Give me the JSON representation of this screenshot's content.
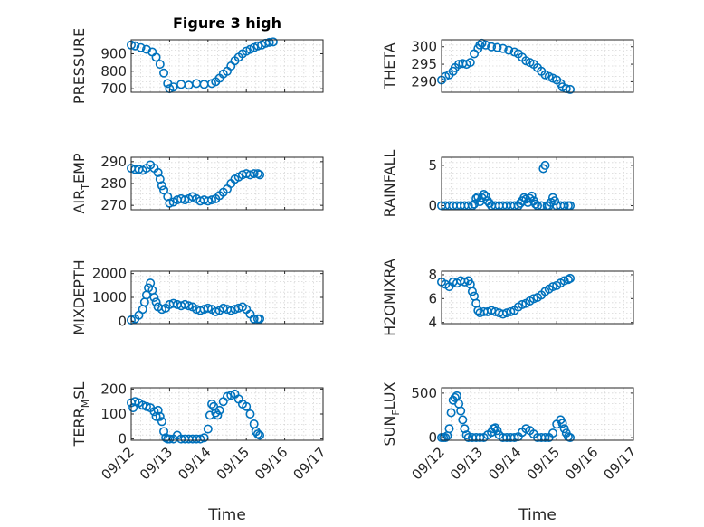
{
  "figure_title": "Figure 3 high",
  "chart_data": [
    {
      "id": "pressure",
      "type": "scatter",
      "title": "Figure 3 high",
      "ylabel": "PRESSURE",
      "ylim": [
        680,
        980
      ],
      "yticks": [
        700,
        800,
        900
      ],
      "xlim": [
        0,
        5
      ],
      "xticks": [
        0,
        1,
        2,
        3,
        4,
        5
      ],
      "xticklabels": [
        "",
        "",
        "",
        "",
        "",
        ""
      ],
      "grid": true,
      "points": [
        [
          0,
          950
        ],
        [
          0.1,
          945
        ],
        [
          0.25,
          935
        ],
        [
          0.4,
          925
        ],
        [
          0.55,
          910
        ],
        [
          0.65,
          880
        ],
        [
          0.75,
          840
        ],
        [
          0.85,
          790
        ],
        [
          0.95,
          730
        ],
        [
          1,
          700
        ],
        [
          1.1,
          710
        ],
        [
          1.3,
          725
        ],
        [
          1.5,
          720
        ],
        [
          1.7,
          730
        ],
        [
          1.9,
          725
        ],
        [
          2.1,
          730
        ],
        [
          2.2,
          740
        ],
        [
          2.3,
          760
        ],
        [
          2.4,
          785
        ],
        [
          2.5,
          800
        ],
        [
          2.6,
          830
        ],
        [
          2.7,
          860
        ],
        [
          2.8,
          880
        ],
        [
          2.9,
          900
        ],
        [
          3,
          915
        ],
        [
          3.1,
          925
        ],
        [
          3.2,
          935
        ],
        [
          3.3,
          945
        ],
        [
          3.4,
          950
        ],
        [
          3.5,
          960
        ],
        [
          3.6,
          965
        ],
        [
          3.7,
          968
        ]
      ]
    },
    {
      "id": "theta",
      "type": "scatter",
      "ylabel": "THETA",
      "ylim": [
        287,
        302
      ],
      "yticks": [
        290,
        295,
        300
      ],
      "xlim": [
        0,
        5
      ],
      "xticks": [
        0,
        1,
        2,
        3,
        4,
        5
      ],
      "xticklabels": [
        "",
        "",
        "",
        "",
        "",
        ""
      ],
      "grid": true,
      "points": [
        [
          0,
          290.5
        ],
        [
          0.1,
          291.5
        ],
        [
          0.2,
          292
        ],
        [
          0.3,
          293
        ],
        [
          0.35,
          294
        ],
        [
          0.45,
          295
        ],
        [
          0.55,
          295.2
        ],
        [
          0.65,
          295
        ],
        [
          0.75,
          295.5
        ],
        [
          0.85,
          298
        ],
        [
          0.95,
          299.5
        ],
        [
          1,
          300.5
        ],
        [
          1.05,
          301
        ],
        [
          1.15,
          300.5
        ],
        [
          1.3,
          300
        ],
        [
          1.45,
          299.8
        ],
        [
          1.6,
          299.5
        ],
        [
          1.75,
          299
        ],
        [
          1.9,
          298.5
        ],
        [
          2,
          298
        ],
        [
          2.1,
          297
        ],
        [
          2.2,
          296
        ],
        [
          2.3,
          295.5
        ],
        [
          2.4,
          295
        ],
        [
          2.5,
          294
        ],
        [
          2.6,
          293
        ],
        [
          2.7,
          292
        ],
        [
          2.8,
          291.5
        ],
        [
          2.9,
          291
        ],
        [
          3,
          290.5
        ],
        [
          3.1,
          289.5
        ],
        [
          3.15,
          288.5
        ],
        [
          3.25,
          288
        ],
        [
          3.35,
          287.8
        ]
      ]
    },
    {
      "id": "air_temp",
      "type": "scatter",
      "ylabel": "AIR_TEMP",
      "ylim": [
        268,
        292
      ],
      "yticks": [
        270,
        280,
        290
      ],
      "xlim": [
        0,
        5
      ],
      "xticks": [
        0,
        1,
        2,
        3,
        4,
        5
      ],
      "xticklabels": [
        "",
        "",
        "",
        "",
        "",
        ""
      ],
      "grid": true,
      "points": [
        [
          0,
          287
        ],
        [
          0.1,
          286.5
        ],
        [
          0.2,
          286.5
        ],
        [
          0.3,
          286
        ],
        [
          0.4,
          287
        ],
        [
          0.5,
          288.5
        ],
        [
          0.6,
          287
        ],
        [
          0.7,
          285
        ],
        [
          0.75,
          282
        ],
        [
          0.8,
          279
        ],
        [
          0.85,
          277
        ],
        [
          0.95,
          274
        ],
        [
          1,
          271
        ],
        [
          1.1,
          271.5
        ],
        [
          1.2,
          272.5
        ],
        [
          1.3,
          273
        ],
        [
          1.4,
          272.5
        ],
        [
          1.5,
          273
        ],
        [
          1.6,
          274
        ],
        [
          1.7,
          273
        ],
        [
          1.8,
          272
        ],
        [
          1.9,
          272.5
        ],
        [
          2,
          272
        ],
        [
          2.1,
          272.5
        ],
        [
          2.2,
          273
        ],
        [
          2.3,
          274.5
        ],
        [
          2.4,
          276
        ],
        [
          2.5,
          277.5
        ],
        [
          2.6,
          280
        ],
        [
          2.7,
          282
        ],
        [
          2.8,
          283
        ],
        [
          2.9,
          284
        ],
        [
          3,
          284.5
        ],
        [
          3.1,
          284
        ],
        [
          3.2,
          284.5
        ],
        [
          3.3,
          284.5
        ],
        [
          3.35,
          284
        ]
      ]
    },
    {
      "id": "rainfall",
      "type": "scatter",
      "ylabel": "RAINFALL",
      "ylim": [
        -0.5,
        6
      ],
      "yticks": [
        0,
        5
      ],
      "xlim": [
        0,
        5
      ],
      "xticks": [
        0,
        1,
        2,
        3,
        4,
        5
      ],
      "xticklabels": [
        "",
        "",
        "",
        "",
        "",
        ""
      ],
      "grid": true,
      "points": [
        [
          0,
          0
        ],
        [
          0.1,
          0
        ],
        [
          0.2,
          0
        ],
        [
          0.3,
          0
        ],
        [
          0.4,
          0
        ],
        [
          0.5,
          0
        ],
        [
          0.6,
          0
        ],
        [
          0.7,
          0
        ],
        [
          0.8,
          0
        ],
        [
          0.85,
          0.2
        ],
        [
          0.9,
          0.9
        ],
        [
          0.95,
          1.1
        ],
        [
          1,
          0.5
        ],
        [
          1.05,
          1
        ],
        [
          1.1,
          1.4
        ],
        [
          1.15,
          1.2
        ],
        [
          1.2,
          0.6
        ],
        [
          1.25,
          0.3
        ],
        [
          1.3,
          0
        ],
        [
          1.4,
          0
        ],
        [
          1.5,
          0
        ],
        [
          1.6,
          0
        ],
        [
          1.7,
          0
        ],
        [
          1.8,
          0
        ],
        [
          1.9,
          0
        ],
        [
          2,
          0
        ],
        [
          2.05,
          0.3
        ],
        [
          2.1,
          0.6
        ],
        [
          2.15,
          1
        ],
        [
          2.2,
          0.8
        ],
        [
          2.25,
          0.4
        ],
        [
          2.3,
          0.9
        ],
        [
          2.35,
          1.2
        ],
        [
          2.4,
          0.6
        ],
        [
          2.45,
          0.2
        ],
        [
          2.5,
          0
        ],
        [
          2.6,
          0
        ],
        [
          2.65,
          4.6
        ],
        [
          2.7,
          5
        ],
        [
          2.75,
          0
        ],
        [
          2.8,
          0
        ],
        [
          2.85,
          0.4
        ],
        [
          2.9,
          1
        ],
        [
          2.95,
          0.6
        ],
        [
          3,
          0
        ],
        [
          3.1,
          0
        ],
        [
          3.2,
          0
        ],
        [
          3.3,
          0
        ],
        [
          3.35,
          0
        ]
      ]
    },
    {
      "id": "mixdepth",
      "type": "scatter",
      "ylabel": "MIXDEPTH",
      "ylim": [
        -100,
        2100
      ],
      "yticks": [
        0,
        1000,
        2000
      ],
      "xlim": [
        0,
        5
      ],
      "xticks": [
        0,
        1,
        2,
        3,
        4,
        5
      ],
      "xticklabels": [
        "",
        "",
        "",
        "",
        "",
        ""
      ],
      "grid": true,
      "points": [
        [
          0,
          50
        ],
        [
          0.1,
          100
        ],
        [
          0.2,
          250
        ],
        [
          0.3,
          500
        ],
        [
          0.35,
          800
        ],
        [
          0.4,
          1100
        ],
        [
          0.45,
          1400
        ],
        [
          0.5,
          1600
        ],
        [
          0.55,
          1300
        ],
        [
          0.6,
          1000
        ],
        [
          0.65,
          800
        ],
        [
          0.7,
          600
        ],
        [
          0.8,
          500
        ],
        [
          0.9,
          550
        ],
        [
          1,
          700
        ],
        [
          1.1,
          750
        ],
        [
          1.2,
          700
        ],
        [
          1.3,
          650
        ],
        [
          1.4,
          700
        ],
        [
          1.5,
          650
        ],
        [
          1.6,
          600
        ],
        [
          1.7,
          500
        ],
        [
          1.8,
          450
        ],
        [
          1.9,
          500
        ],
        [
          2,
          550
        ],
        [
          2.1,
          500
        ],
        [
          2.2,
          400
        ],
        [
          2.3,
          450
        ],
        [
          2.4,
          550
        ],
        [
          2.5,
          500
        ],
        [
          2.6,
          450
        ],
        [
          2.7,
          500
        ],
        [
          2.8,
          550
        ],
        [
          2.9,
          600
        ],
        [
          3,
          500
        ],
        [
          3.1,
          300
        ],
        [
          3.2,
          100
        ],
        [
          3.3,
          100
        ],
        [
          3.35,
          100
        ]
      ]
    },
    {
      "id": "h2omixra",
      "type": "scatter",
      "ylabel": "H2OMIXRA",
      "ylim": [
        3.9,
        8.3
      ],
      "yticks": [
        4,
        6,
        8
      ],
      "xlim": [
        0,
        5
      ],
      "xticks": [
        0,
        1,
        2,
        3,
        4,
        5
      ],
      "xticklabels": [
        "",
        "",
        "",
        "",
        "",
        ""
      ],
      "grid": true,
      "points": [
        [
          0,
          7.4
        ],
        [
          0.1,
          7.2
        ],
        [
          0.2,
          7
        ],
        [
          0.3,
          7.4
        ],
        [
          0.4,
          7.3
        ],
        [
          0.5,
          7.5
        ],
        [
          0.6,
          7.4
        ],
        [
          0.7,
          7.5
        ],
        [
          0.75,
          7.2
        ],
        [
          0.8,
          6.6
        ],
        [
          0.85,
          6.2
        ],
        [
          0.9,
          5.6
        ],
        [
          0.95,
          5
        ],
        [
          1,
          4.8
        ],
        [
          1.1,
          4.9
        ],
        [
          1.2,
          4.9
        ],
        [
          1.3,
          5
        ],
        [
          1.4,
          4.9
        ],
        [
          1.5,
          4.8
        ],
        [
          1.6,
          4.7
        ],
        [
          1.7,
          4.8
        ],
        [
          1.8,
          4.9
        ],
        [
          1.9,
          5
        ],
        [
          2,
          5.3
        ],
        [
          2.1,
          5.5
        ],
        [
          2.2,
          5.6
        ],
        [
          2.3,
          5.8
        ],
        [
          2.4,
          6
        ],
        [
          2.5,
          6.1
        ],
        [
          2.6,
          6.3
        ],
        [
          2.7,
          6.6
        ],
        [
          2.8,
          6.8
        ],
        [
          2.9,
          7
        ],
        [
          3,
          7.1
        ],
        [
          3.1,
          7.3
        ],
        [
          3.2,
          7.5
        ],
        [
          3.3,
          7.6
        ],
        [
          3.35,
          7.7
        ]
      ]
    },
    {
      "id": "terr_msl",
      "type": "scatter",
      "ylabel": "TERR_MSL",
      "ylim": [
        -5,
        205
      ],
      "yticks": [
        0,
        100,
        200
      ],
      "xlim": [
        0,
        5
      ],
      "xticks": [
        0,
        1,
        2,
        3,
        4,
        5
      ],
      "xticklabels": [
        "09/12",
        "09/13",
        "09/14",
        "09/15",
        "09/16",
        "09/17"
      ],
      "xlabel": "Time",
      "grid": true,
      "points": [
        [
          0,
          145
        ],
        [
          0.05,
          125
        ],
        [
          0.1,
          150
        ],
        [
          0.2,
          145
        ],
        [
          0.3,
          135
        ],
        [
          0.4,
          130
        ],
        [
          0.5,
          125
        ],
        [
          0.6,
          110
        ],
        [
          0.65,
          90
        ],
        [
          0.7,
          115
        ],
        [
          0.75,
          90
        ],
        [
          0.8,
          70
        ],
        [
          0.85,
          30
        ],
        [
          0.9,
          5
        ],
        [
          0.95,
          0
        ],
        [
          1,
          0
        ],
        [
          1.1,
          0
        ],
        [
          1.2,
          15
        ],
        [
          1.3,
          0
        ],
        [
          1.4,
          0
        ],
        [
          1.5,
          0
        ],
        [
          1.6,
          0
        ],
        [
          1.7,
          0
        ],
        [
          1.8,
          0
        ],
        [
          1.9,
          5
        ],
        [
          2,
          40
        ],
        [
          2.05,
          95
        ],
        [
          2.1,
          140
        ],
        [
          2.15,
          130
        ],
        [
          2.2,
          105
        ],
        [
          2.25,
          95
        ],
        [
          2.3,
          115
        ],
        [
          2.4,
          150
        ],
        [
          2.5,
          170
        ],
        [
          2.6,
          175
        ],
        [
          2.7,
          180
        ],
        [
          2.8,
          160
        ],
        [
          2.9,
          140
        ],
        [
          3,
          130
        ],
        [
          3.1,
          100
        ],
        [
          3.2,
          60
        ],
        [
          3.25,
          30
        ],
        [
          3.3,
          20
        ],
        [
          3.35,
          15
        ]
      ]
    },
    {
      "id": "sun_flux",
      "type": "scatter",
      "ylabel": "SUN_FLUX",
      "ylim": [
        -30,
        560
      ],
      "yticks": [
        0,
        500
      ],
      "xlim": [
        0,
        5
      ],
      "xticks": [
        0,
        1,
        2,
        3,
        4,
        5
      ],
      "xticklabels": [
        "09/12",
        "09/13",
        "09/14",
        "09/15",
        "09/16",
        "09/17"
      ],
      "xlabel": "Time",
      "grid": true,
      "points": [
        [
          0,
          0
        ],
        [
          0.05,
          0
        ],
        [
          0.1,
          0
        ],
        [
          0.15,
          20
        ],
        [
          0.2,
          100
        ],
        [
          0.25,
          280
        ],
        [
          0.3,
          420
        ],
        [
          0.35,
          450
        ],
        [
          0.4,
          470
        ],
        [
          0.45,
          380
        ],
        [
          0.5,
          300
        ],
        [
          0.55,
          200
        ],
        [
          0.6,
          100
        ],
        [
          0.65,
          30
        ],
        [
          0.7,
          0
        ],
        [
          0.8,
          0
        ],
        [
          0.9,
          0
        ],
        [
          1,
          0
        ],
        [
          1.1,
          0
        ],
        [
          1.2,
          30
        ],
        [
          1.3,
          60
        ],
        [
          1.35,
          100
        ],
        [
          1.4,
          110
        ],
        [
          1.45,
          80
        ],
        [
          1.5,
          30
        ],
        [
          1.6,
          0
        ],
        [
          1.7,
          0
        ],
        [
          1.8,
          0
        ],
        [
          1.9,
          0
        ],
        [
          2,
          10
        ],
        [
          2.1,
          60
        ],
        [
          2.2,
          100
        ],
        [
          2.3,
          80
        ],
        [
          2.4,
          40
        ],
        [
          2.5,
          0
        ],
        [
          2.6,
          0
        ],
        [
          2.7,
          0
        ],
        [
          2.8,
          0
        ],
        [
          2.9,
          50
        ],
        [
          3,
          150
        ],
        [
          3.1,
          200
        ],
        [
          3.15,
          160
        ],
        [
          3.2,
          100
        ],
        [
          3.25,
          50
        ],
        [
          3.3,
          10
        ],
        [
          3.35,
          0
        ]
      ]
    }
  ]
}
